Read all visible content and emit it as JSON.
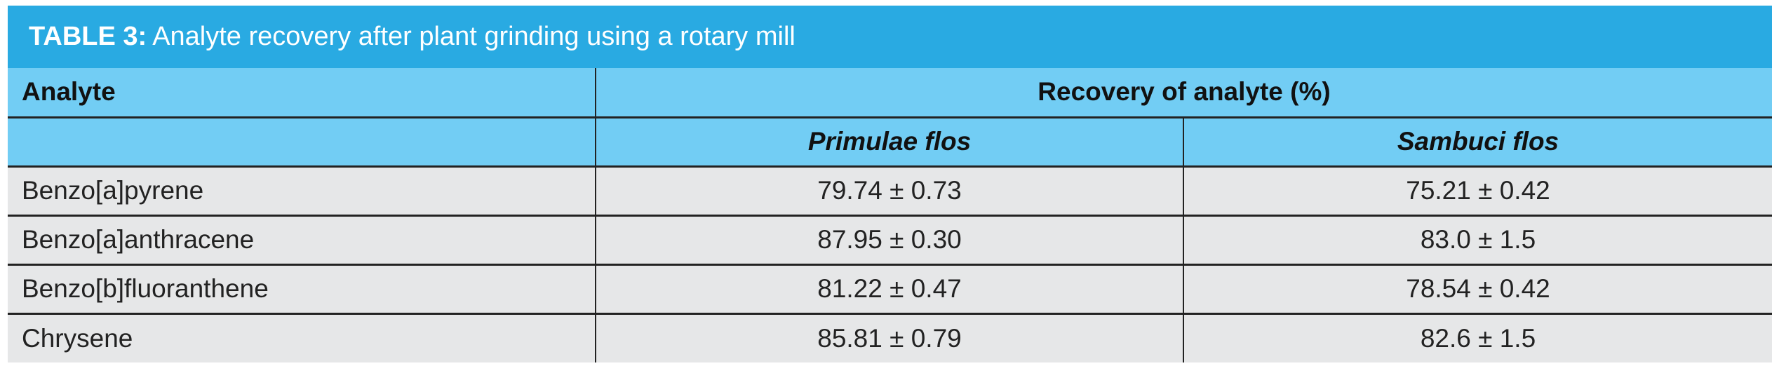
{
  "title": {
    "label": "TABLE 3:",
    "text": "Analyte recovery after plant grinding using a rotary mill"
  },
  "table": {
    "header": [
      "Analyte",
      "Recovery of analyte (%)"
    ],
    "subheader": [
      "Primulae flos",
      "Sambuci flos"
    ],
    "rows": [
      [
        "Benzo[a]pyrene",
        "79.74 ± 0.73",
        "75.21 ± 0.42"
      ],
      [
        "Benzo[a]anthracene",
        "87.95 ± 0.30",
        "83.0 ± 1.5"
      ],
      [
        "Benzo[b]fluoranthene",
        "81.22 ± 0.47",
        "78.54 ± 0.42"
      ],
      [
        "Chrysene",
        "85.81 ± 0.79",
        "82.6 ± 1.5"
      ]
    ]
  }
}
